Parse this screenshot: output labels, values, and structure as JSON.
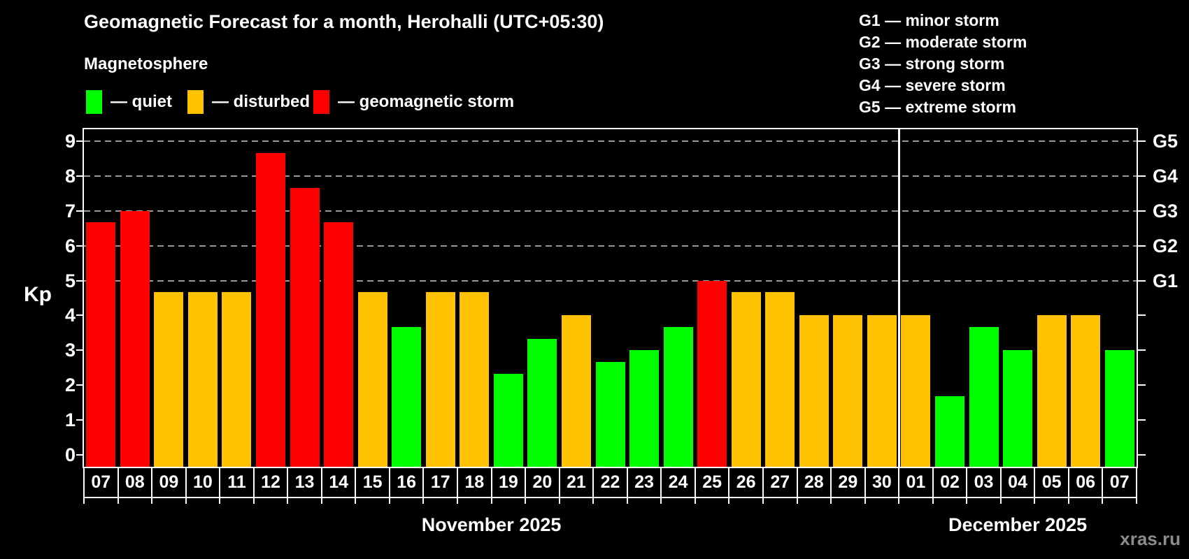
{
  "header": {
    "title": "Geomagnetic Forecast for a month, Herohalli (UTC+05:30)",
    "subtitle": "Magnetosphere"
  },
  "legend": {
    "items": [
      {
        "name": "quiet",
        "label": "— quiet",
        "color": "#00ff00"
      },
      {
        "name": "disturbed",
        "label": "— disturbed",
        "color": "#ffc200"
      },
      {
        "name": "storm",
        "label": "— geomagnetic storm",
        "color": "#ff0000"
      }
    ]
  },
  "g_legend": {
    "items": [
      {
        "label": "G1 — minor storm"
      },
      {
        "label": "G2 — moderate storm"
      },
      {
        "label": "G3 — strong storm"
      },
      {
        "label": "G4 — severe storm"
      },
      {
        "label": "G5 — extreme storm"
      }
    ]
  },
  "watermark": "xras.ru",
  "chart_data": {
    "type": "bar",
    "title": "Geomagnetic Forecast for a month, Herohalli (UTC+05:30)",
    "ylabel": "Kp",
    "ylim": [
      0,
      9
    ],
    "yticks": [
      0,
      1,
      2,
      3,
      4,
      5,
      6,
      7,
      8,
      9
    ],
    "gridlines_at": [
      5,
      6,
      7,
      8,
      9
    ],
    "grid_style": "dashed",
    "categories": [
      "07",
      "08",
      "09",
      "10",
      "11",
      "12",
      "13",
      "14",
      "15",
      "16",
      "17",
      "18",
      "19",
      "20",
      "21",
      "22",
      "23",
      "24",
      "25",
      "26",
      "27",
      "28",
      "29",
      "30",
      "01",
      "02",
      "03",
      "04",
      "05",
      "06",
      "07"
    ],
    "values": [
      6.67,
      7,
      4.67,
      4.67,
      4.67,
      8.67,
      7.67,
      6.67,
      4.67,
      3.67,
      4.67,
      4.67,
      2.33,
      3.33,
      4,
      2.67,
      3,
      3.67,
      5,
      4.67,
      4.67,
      4,
      4,
      4,
      4,
      1.67,
      3.67,
      3,
      4,
      4,
      3
    ],
    "statuses": [
      "storm",
      "storm",
      "disturbed",
      "disturbed",
      "disturbed",
      "storm",
      "storm",
      "storm",
      "disturbed",
      "quiet",
      "disturbed",
      "disturbed",
      "quiet",
      "quiet",
      "disturbed",
      "quiet",
      "quiet",
      "quiet",
      "storm",
      "disturbed",
      "disturbed",
      "disturbed",
      "disturbed",
      "disturbed",
      "disturbed",
      "quiet",
      "quiet",
      "quiet",
      "disturbed",
      "disturbed",
      "quiet"
    ],
    "status_colors": {
      "quiet": "#00ff00",
      "disturbed": "#ffc200",
      "storm": "#ff0000"
    },
    "g_scale": [
      {
        "label": "G1",
        "kp": 5
      },
      {
        "label": "G2",
        "kp": 6
      },
      {
        "label": "G3",
        "kp": 7
      },
      {
        "label": "G4",
        "kp": 8
      },
      {
        "label": "G5",
        "kp": 9
      }
    ],
    "months": [
      {
        "name": "November 2025",
        "days": 24
      },
      {
        "name": "December 2025",
        "days": 7
      }
    ],
    "legend_position": "top-left"
  }
}
